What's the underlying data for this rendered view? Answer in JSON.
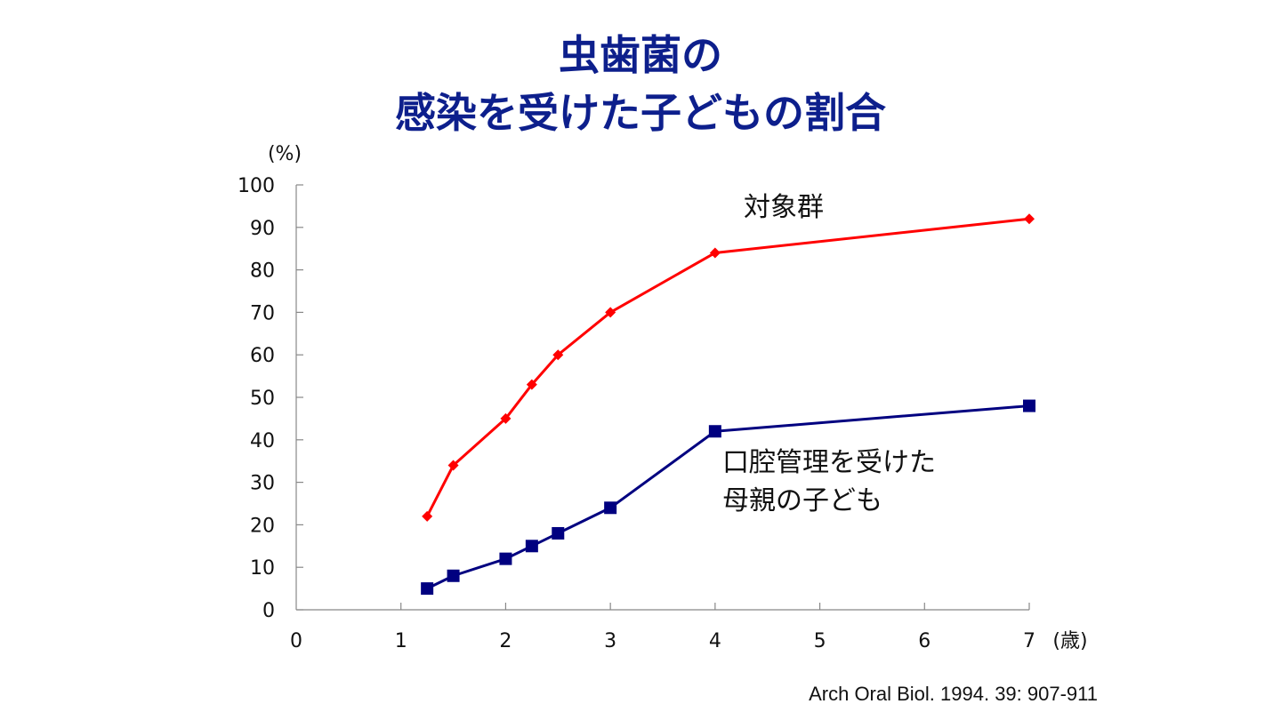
{
  "title_line1": "虫歯菌の",
  "title_line2": "感染を受けた子どもの割合",
  "citation": "Arch Oral Biol. 1994. 39: 907-911",
  "chart_data": {
    "type": "line",
    "title": "虫歯菌の感染を受けた子どもの割合",
    "ylabel": "(%)",
    "xlabel": "(歳)",
    "xlim": [
      0,
      7
    ],
    "ylim": [
      0,
      100
    ],
    "x_ticks": [
      "0",
      "1",
      "2",
      "3",
      "4",
      "5",
      "6",
      "7"
    ],
    "y_ticks": [
      "0",
      "10",
      "20",
      "30",
      "40",
      "50",
      "60",
      "70",
      "80",
      "90",
      "100"
    ],
    "grid": false,
    "series": [
      {
        "name": "対象群",
        "color": "#ff0000",
        "marker": "diamond",
        "x": [
          1.25,
          1.5,
          2,
          2.25,
          2.5,
          3,
          4,
          7
        ],
        "values": [
          22,
          34,
          45,
          53,
          60,
          70,
          84,
          92
        ]
      },
      {
        "name": "口腔管理を受けた母親の子ども",
        "name_lines": [
          "口腔管理を受けた",
          "母親の子ども"
        ],
        "color": "#000080",
        "marker": "square",
        "x": [
          1.25,
          1.5,
          2,
          2.25,
          2.5,
          3,
          4,
          7
        ],
        "values": [
          5,
          8,
          12,
          15,
          18,
          24,
          42,
          48
        ]
      }
    ]
  }
}
